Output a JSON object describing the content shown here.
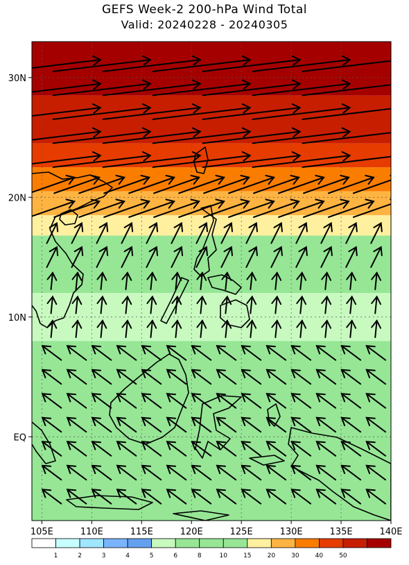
{
  "header": {
    "title": "GEFS Week-2 200-hPa Wind Total",
    "subtitle": "Valid: 20240228 - 20240305"
  },
  "map": {
    "lon_range": [
      104,
      140
    ],
    "lat_range": [
      -7,
      33
    ],
    "lat_labels": [
      {
        "lat": 30,
        "text": "30N"
      },
      {
        "lat": 20,
        "text": "20N"
      },
      {
        "lat": 10,
        "text": "10N"
      },
      {
        "lat": 0,
        "text": "EQ"
      }
    ],
    "lon_labels": [
      {
        "lon": 105,
        "text": "105E"
      },
      {
        "lon": 110,
        "text": "110E"
      },
      {
        "lon": 115,
        "text": "115E"
      },
      {
        "lon": 120,
        "text": "120E"
      },
      {
        "lon": 125,
        "text": "125E"
      },
      {
        "lon": 130,
        "text": "130E"
      },
      {
        "lon": 135,
        "text": "135E"
      },
      {
        "lon": 140,
        "text": "140E"
      }
    ],
    "speed_bands": [
      {
        "lat_min": 28.5,
        "lat_max": 33,
        "color": "#a50000"
      },
      {
        "lat_min": 24.5,
        "lat_max": 28.5,
        "color": "#c81e00"
      },
      {
        "lat_min": 22.5,
        "lat_max": 24.5,
        "color": "#e63c00"
      },
      {
        "lat_min": 20.5,
        "lat_max": 22.5,
        "color": "#fa7d00"
      },
      {
        "lat_min": 18.5,
        "lat_max": 20.5,
        "color": "#ffb442"
      },
      {
        "lat_min": 16.8,
        "lat_max": 18.5,
        "color": "#fff0a0"
      },
      {
        "lat_min": 12,
        "lat_max": 16.8,
        "color": "#96e696"
      },
      {
        "lat_min": 8,
        "lat_max": 12,
        "color": "#c8fac0"
      },
      {
        "lat_min": -7,
        "lat_max": 8,
        "color": "#96e696"
      }
    ]
  },
  "colorbar": {
    "colors": [
      "#ffffff",
      "#c8ffff",
      "#a0e6ff",
      "#7ab4ff",
      "#64a0f0",
      "#c8fac0",
      "#96e696",
      "#96e696",
      "#96e696",
      "#fff0a0",
      "#ffb442",
      "#fa7d00",
      "#e63c00",
      "#c81e00",
      "#a50000"
    ],
    "labels": [
      "1",
      "2",
      "3",
      "4",
      "5",
      "6",
      "8",
      "10",
      "15",
      "20",
      "30",
      "40",
      "50"
    ]
  }
}
